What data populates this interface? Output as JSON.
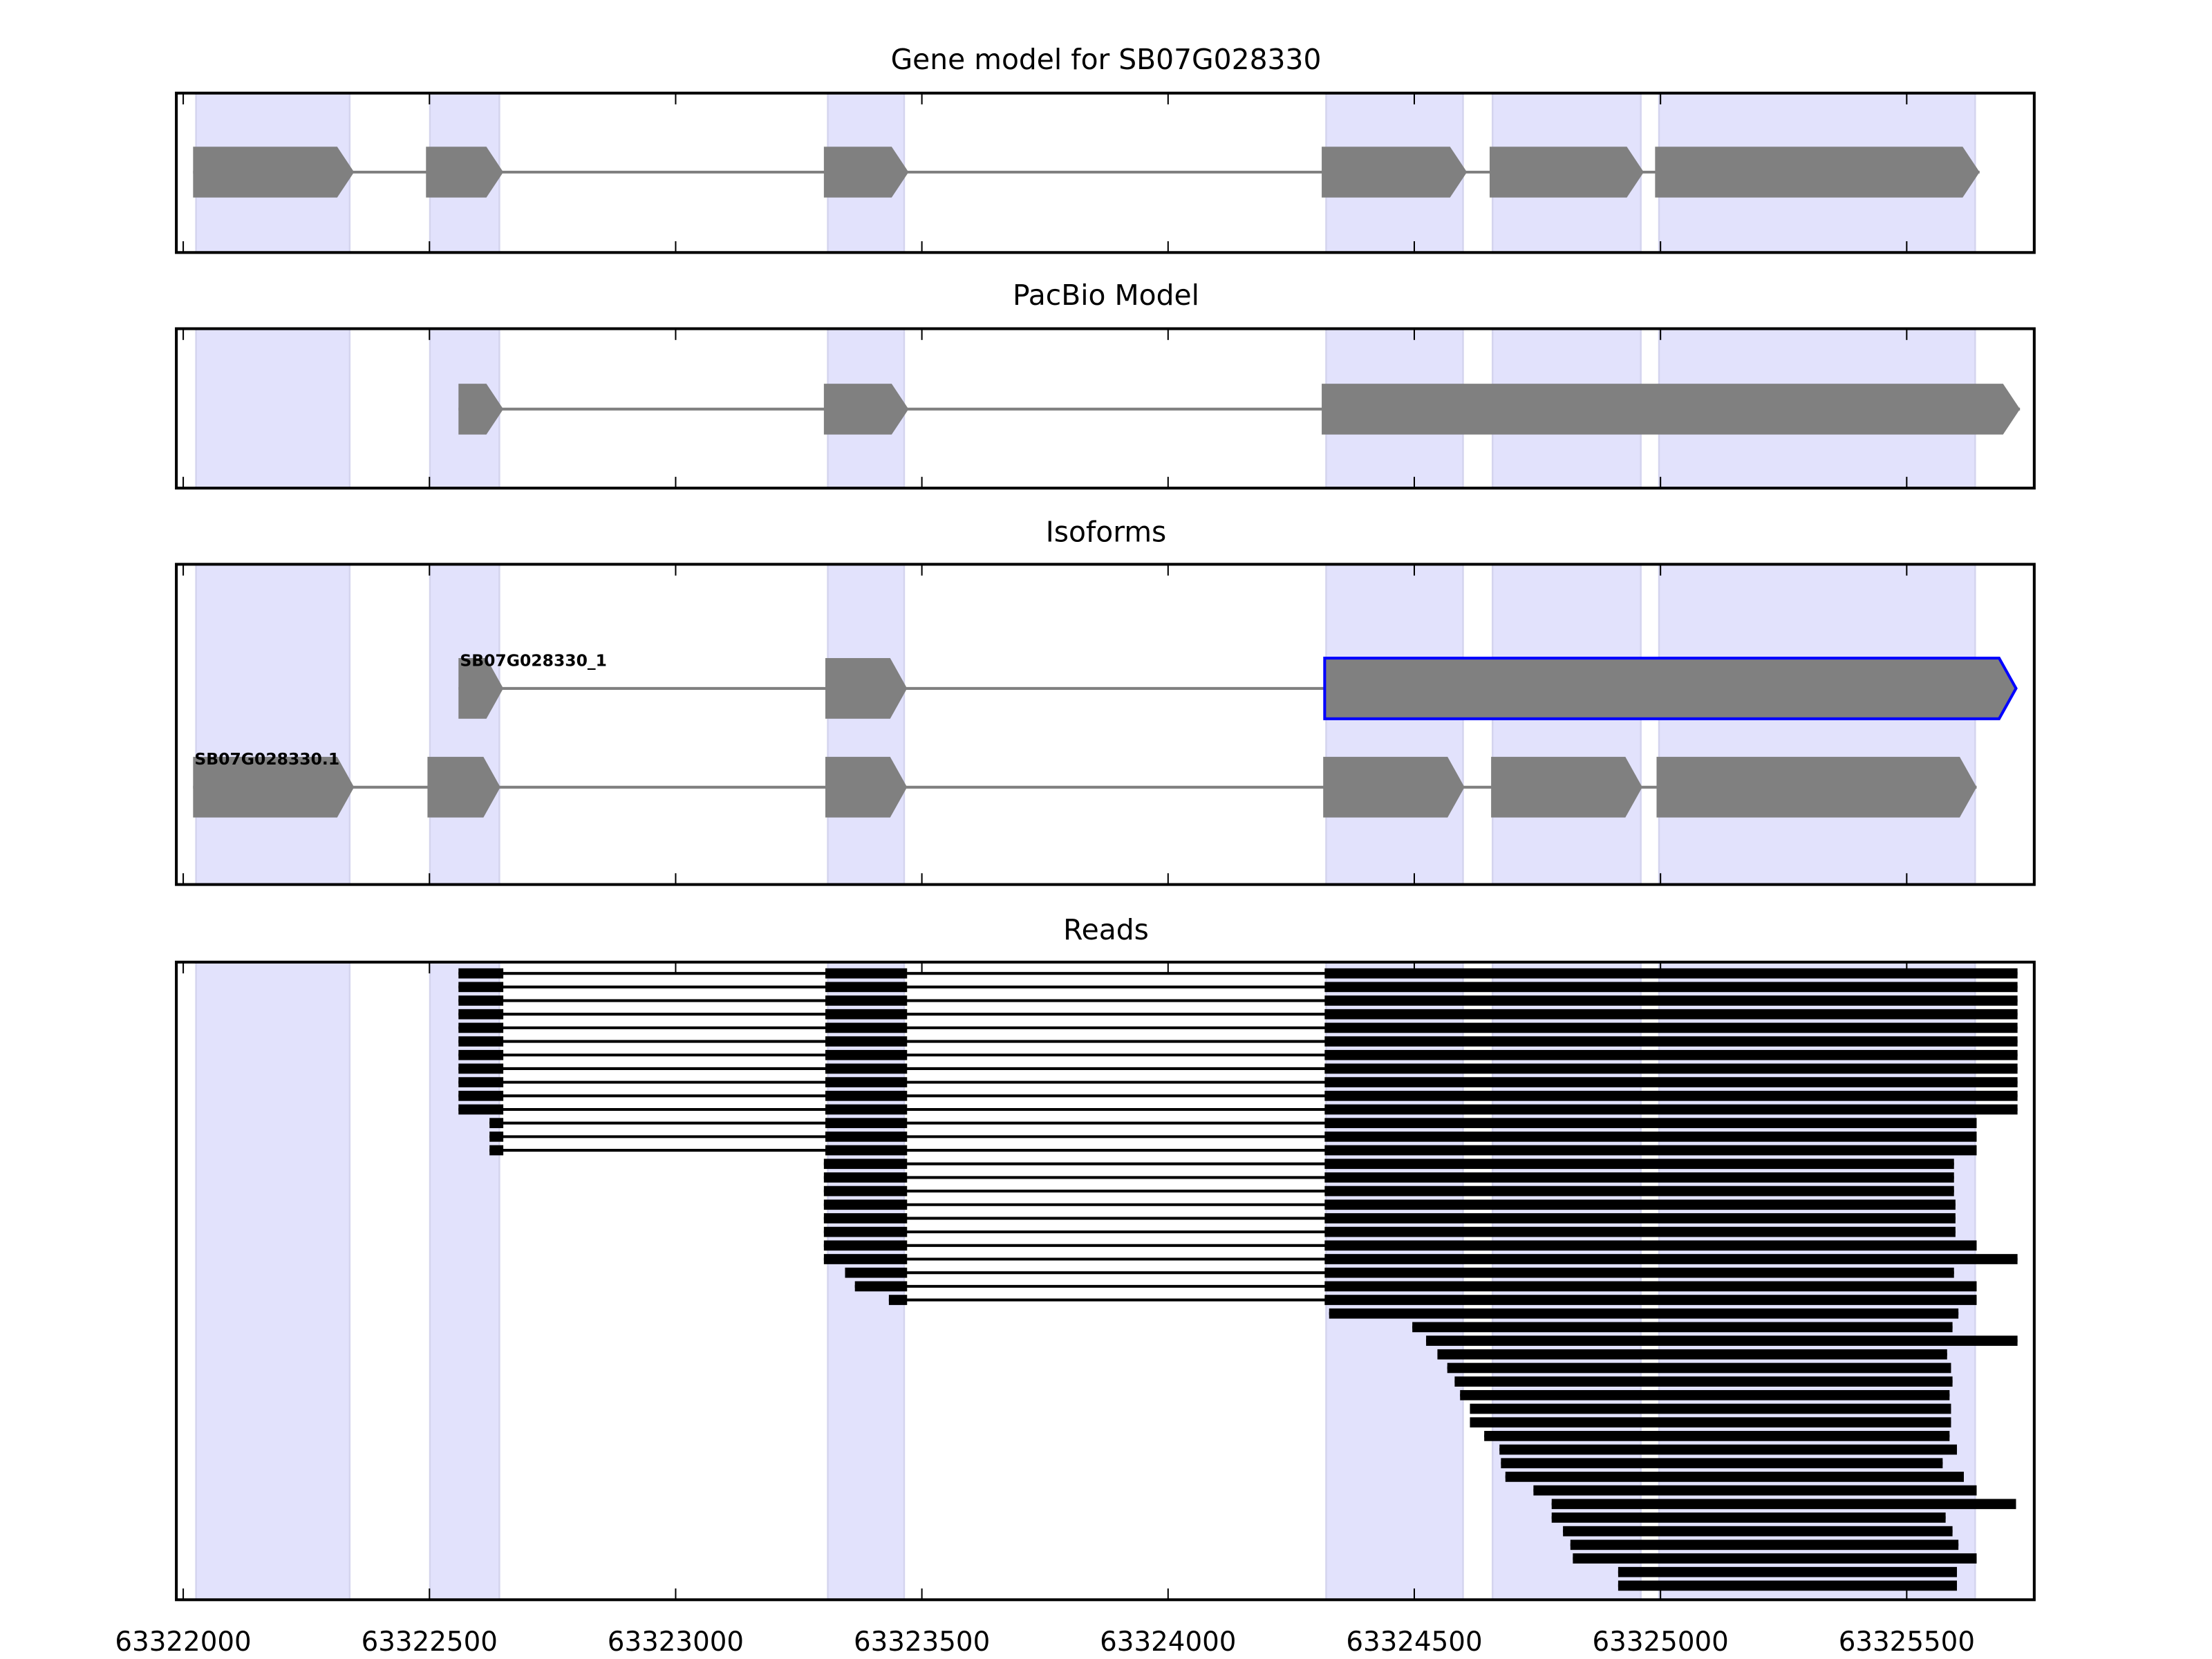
{
  "chart_data": {
    "type": "gene-track",
    "titles": {
      "gene_model": "Gene model for SB07G028330",
      "pacbio": "PacBio Model",
      "isoforms": "Isoforms",
      "reads": "Reads"
    },
    "xlim": [
      63321986,
      63325759
    ],
    "xticks": [
      63322000,
      63322500,
      63323000,
      63323500,
      63324000,
      63324500,
      63325000,
      63325500
    ],
    "xtick_labels": [
      "63322000",
      "63322500",
      "63323000",
      "63323500",
      "63324000",
      "63324500",
      "63325000",
      "63325500"
    ],
    "shaded_regions": [
      [
        63322026,
        63322338
      ],
      [
        63322501,
        63322642
      ],
      [
        63323309,
        63323464
      ],
      [
        63324321,
        63324599
      ],
      [
        63324659,
        63324960
      ],
      [
        63324997,
        63325639
      ]
    ],
    "gene_model_exons": [
      [
        63322020,
        63322347
      ],
      [
        63322493,
        63322650
      ],
      [
        63323301,
        63323473
      ],
      [
        63324312,
        63324607
      ],
      [
        63324653,
        63324966
      ],
      [
        63324989,
        63325648
      ]
    ],
    "pacbio_exons": [
      [
        63322559,
        63322650
      ],
      [
        63323301,
        63323473
      ],
      [
        63324312,
        63325730
      ]
    ],
    "isoforms": [
      {
        "name": "SB07G028330_1",
        "highlight_last_exon": true,
        "exons": [
          [
            63322559,
            63322650
          ],
          [
            63323304,
            63323470
          ],
          [
            63324318,
            63325722
          ]
        ]
      },
      {
        "name": "SB07G028330.1",
        "highlight_last_exon": false,
        "exons": [
          [
            63322020,
            63322347
          ],
          [
            63322496,
            63322644
          ],
          [
            63323304,
            63323470
          ],
          [
            63324315,
            63324602
          ],
          [
            63324656,
            63324963
          ],
          [
            63324992,
            63325642
          ]
        ]
      }
    ],
    "reads": [
      [
        [
          63322559,
          63322650
        ],
        [
          63323304,
          63323470
        ],
        [
          63324318,
          63325725
        ]
      ],
      [
        [
          63322559,
          63322650
        ],
        [
          63323304,
          63323470
        ],
        [
          63324318,
          63325725
        ]
      ],
      [
        [
          63322559,
          63322650
        ],
        [
          63323304,
          63323470
        ],
        [
          63324318,
          63325725
        ]
      ],
      [
        [
          63322559,
          63322650
        ],
        [
          63323304,
          63323470
        ],
        [
          63324318,
          63325725
        ]
      ],
      [
        [
          63322559,
          63322650
        ],
        [
          63323304,
          63323470
        ],
        [
          63324318,
          63325725
        ]
      ],
      [
        [
          63322559,
          63322650
        ],
        [
          63323304,
          63323470
        ],
        [
          63324318,
          63325725
        ]
      ],
      [
        [
          63322559,
          63322650
        ],
        [
          63323304,
          63323470
        ],
        [
          63324318,
          63325725
        ]
      ],
      [
        [
          63322559,
          63322650
        ],
        [
          63323304,
          63323470
        ],
        [
          63324318,
          63325725
        ]
      ],
      [
        [
          63322559,
          63322650
        ],
        [
          63323304,
          63323470
        ],
        [
          63324318,
          63325725
        ]
      ],
      [
        [
          63322559,
          63322650
        ],
        [
          63323304,
          63323470
        ],
        [
          63324318,
          63325725
        ]
      ],
      [
        [
          63322559,
          63322650
        ],
        [
          63323304,
          63323470
        ],
        [
          63324318,
          63325725
        ]
      ],
      [
        [
          63322622,
          63322650
        ],
        [
          63323304,
          63323470
        ],
        [
          63324318,
          63325642
        ]
      ],
      [
        [
          63322622,
          63322650
        ],
        [
          63323304,
          63323470
        ],
        [
          63324318,
          63325642
        ]
      ],
      [
        [
          63322622,
          63322650
        ],
        [
          63323304,
          63323470
        ],
        [
          63324318,
          63325642
        ]
      ],
      [
        [
          63323301,
          63323470
        ],
        [
          63324318,
          63325596
        ]
      ],
      [
        [
          63323301,
          63323470
        ],
        [
          63324318,
          63325596
        ]
      ],
      [
        [
          63323301,
          63323470
        ],
        [
          63324318,
          63325596
        ]
      ],
      [
        [
          63323301,
          63323470
        ],
        [
          63324318,
          63325599
        ]
      ],
      [
        [
          63323301,
          63323470
        ],
        [
          63324318,
          63325599
        ]
      ],
      [
        [
          63323301,
          63323470
        ],
        [
          63324318,
          63325599
        ]
      ],
      [
        [
          63323301,
          63323470
        ],
        [
          63324318,
          63325642
        ]
      ],
      [
        [
          63323301,
          63323470
        ],
        [
          63324318,
          63325725
        ]
      ],
      [
        [
          63323344,
          63323470
        ],
        [
          63324318,
          63325596
        ]
      ],
      [
        [
          63323364,
          63323470
        ],
        [
          63324318,
          63325642
        ]
      ],
      [
        [
          63323433,
          63323470
        ],
        [
          63324318,
          63325642
        ]
      ],
      [
        [
          63324327,
          63325605
        ]
      ],
      [
        [
          63324496,
          63325593
        ]
      ],
      [
        [
          63324524,
          63325725
        ]
      ],
      [
        [
          63324547,
          63325582
        ]
      ],
      [
        [
          63324567,
          63325590
        ]
      ],
      [
        [
          63324582,
          63325593
        ]
      ],
      [
        [
          63324593,
          63325587
        ]
      ],
      [
        [
          63324613,
          63325590
        ]
      ],
      [
        [
          63324613,
          63325590
        ]
      ],
      [
        [
          63324642,
          63325587
        ]
      ],
      [
        [
          63324673,
          63325602
        ]
      ],
      [
        [
          63324676,
          63325573
        ]
      ],
      [
        [
          63324685,
          63325616
        ]
      ],
      [
        [
          63324742,
          63325642
        ]
      ],
      [
        [
          63324779,
          63325722
        ]
      ],
      [
        [
          63324779,
          63325579
        ]
      ],
      [
        [
          63324802,
          63325593
        ]
      ],
      [
        [
          63324817,
          63325605
        ]
      ],
      [
        [
          63324822,
          63325642
        ]
      ],
      [
        [
          63324914,
          63325602
        ]
      ],
      [
        [
          63324914,
          63325602
        ]
      ]
    ],
    "colors": {
      "exon": "#808080",
      "intron": "#808080",
      "shade": "#e2e2fc",
      "shade_edge": "#d4d4ee",
      "highlight_outline": "#0000ff",
      "read": "#000000"
    }
  }
}
